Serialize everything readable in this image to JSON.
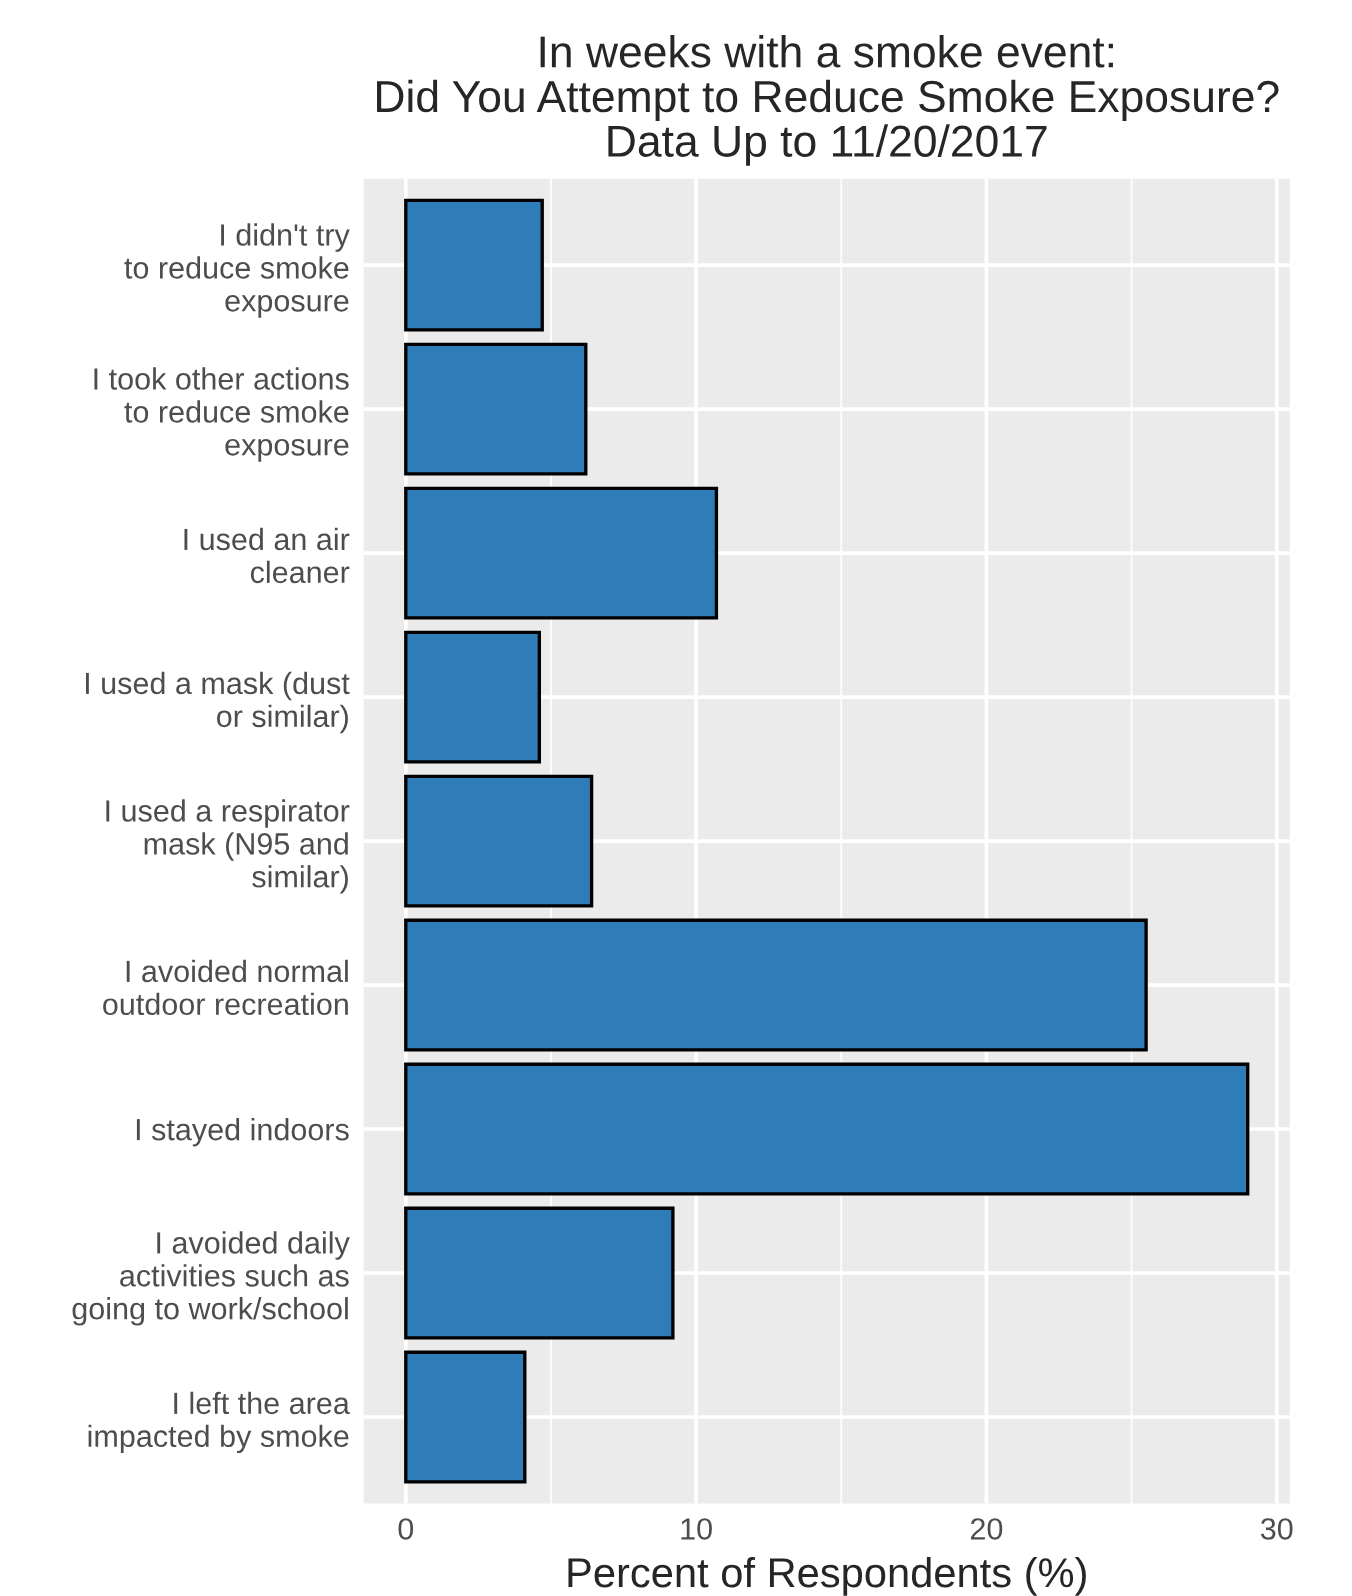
{
  "chart_data": {
    "type": "bar",
    "orientation": "horizontal",
    "title": "In weeks with a smoke event:\nDid You Attempt to Reduce Smoke Exposure?\nData Up to 11/20/2017",
    "xlabel": "Percent of Respondents (%)",
    "categories": [
      "I didn't try\nto reduce smoke\nexposure",
      "I took other actions\nto reduce smoke\nexposure",
      "I used an air\ncleaner",
      "I used a mask (dust\nor similar)",
      "I used a respirator\nmask (N95 and\nsimilar)",
      "I avoided normal\noutdoor recreation",
      "I stayed indoors",
      "I avoided daily\nactivities such as\ngoing to work/school",
      "I left the area\nimpacted by smoke"
    ],
    "values": [
      4.7,
      6.2,
      10.7,
      4.6,
      6.4,
      25.5,
      29.0,
      9.2,
      4.1
    ],
    "color": "#2e7db8",
    "xlim": [
      -1.45,
      30.45
    ],
    "xticks": [
      0,
      10,
      20,
      30
    ],
    "grid": true
  }
}
